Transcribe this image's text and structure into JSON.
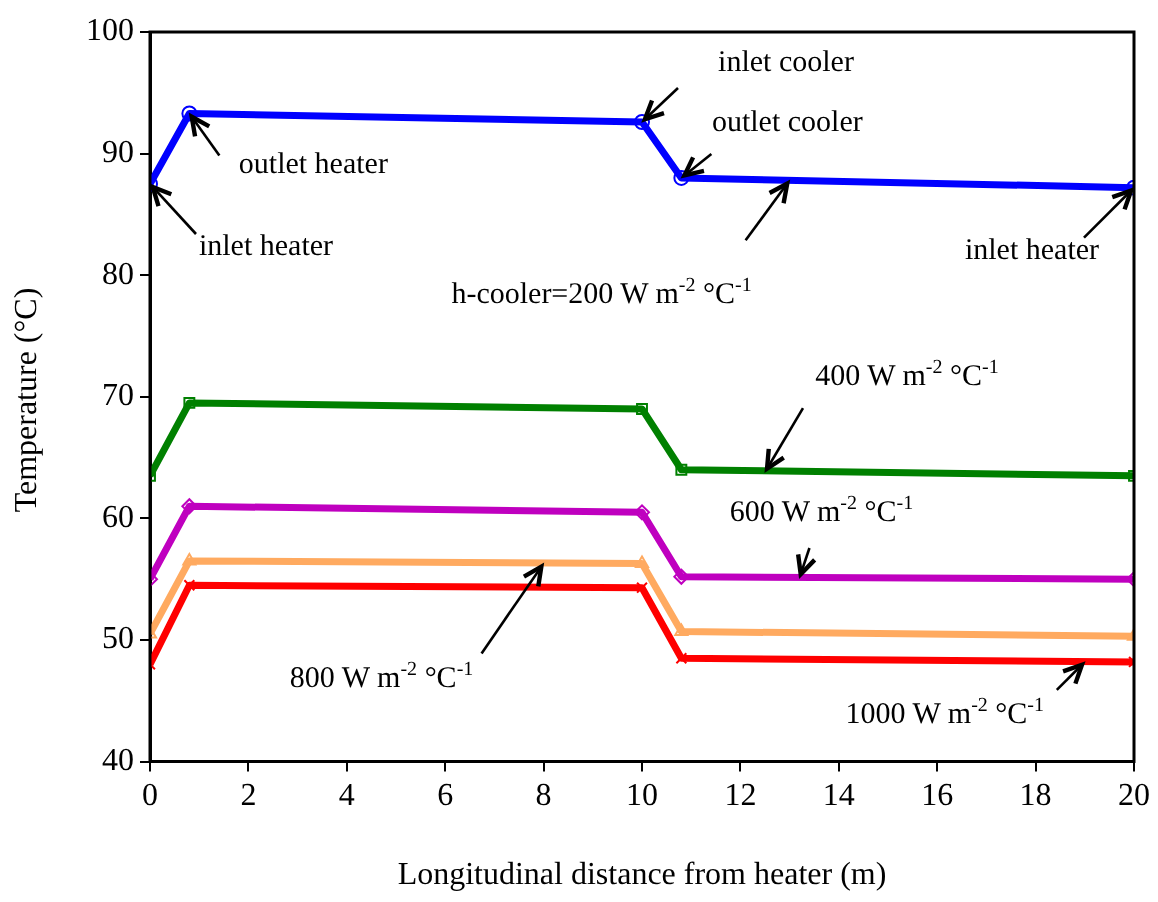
{
  "chart_data": {
    "type": "line",
    "xlabel": "Longitudinal distance from heater (m)",
    "ylabel": "Temperature (°C)",
    "xlim": [
      0,
      20
    ],
    "xticks": [
      0,
      2,
      4,
      6,
      8,
      10,
      12,
      14,
      16,
      18,
      20
    ],
    "ylim": [
      40,
      100
    ],
    "yticks": [
      40,
      50,
      60,
      70,
      80,
      90,
      100
    ],
    "grid": false,
    "legend": false,
    "line_style": "solid",
    "x": [
      0,
      0.8,
      10,
      10.8,
      20
    ],
    "series": [
      {
        "color": "#0000ff",
        "marker": "circle",
        "values": [
          87.5,
          93.3,
          92.6,
          88,
          87.2
        ]
      },
      {
        "color": "#008000",
        "marker": "square",
        "values": [
          63.5,
          69.5,
          69,
          64,
          63.5
        ]
      },
      {
        "color": "#bf00bf",
        "marker": "diamond",
        "values": [
          55,
          61,
          60.5,
          55.2,
          55
        ]
      },
      {
        "color": "#ffaa60",
        "marker": "triangle",
        "values": [
          50.5,
          56.5,
          56.3,
          50.7,
          50.3
        ]
      },
      {
        "color": "#ff0000",
        "marker": "cross",
        "values": [
          48,
          54.5,
          54.3,
          48.5,
          48.2
        ]
      }
    ],
    "annotations": [
      {
        "text": "inlet heater",
        "x": 0,
        "y": 87.5
      },
      {
        "text": "outlet heater",
        "x": 0.8,
        "y": 93.3
      },
      {
        "text": "inlet cooler",
        "x": 10,
        "y": 92.6
      },
      {
        "text": "outlet cooler",
        "x": 10.8,
        "y": 88
      },
      {
        "text": "h-cooler=200 W m$^{-2}$ °C$^{-1}$",
        "x": 13,
        "y": 87.8
      },
      {
        "text": "inlet heater",
        "x": 20,
        "y": 87.2
      },
      {
        "text": "400 W m$^{-2}$ °C$^{-1}$",
        "x": 12.5,
        "y": 63.8
      },
      {
        "text": "600 W m$^{-2}$ °C$^{-1}$",
        "x": 13.2,
        "y": 55.1
      },
      {
        "text": "800 W m$^{-2}$ °C$^{-1}$",
        "x": 8,
        "y": 56.3
      },
      {
        "text": "1000 W m$^{-2}$ °C$^{-1}$",
        "x": 19,
        "y": 48.2
      }
    ]
  }
}
